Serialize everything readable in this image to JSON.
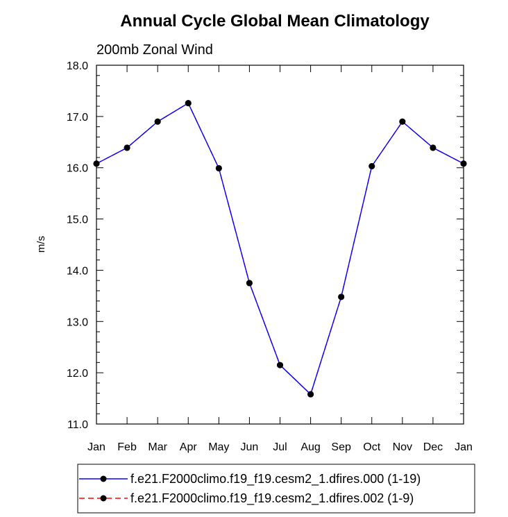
{
  "chart_data": {
    "type": "line",
    "title": "Annual Cycle Global Mean Climatology",
    "subtitle": "200mb Zonal Wind",
    "xlabel": "",
    "ylabel": "m/s",
    "categories": [
      "Jan",
      "Feb",
      "Mar",
      "Apr",
      "May",
      "Jun",
      "Jul",
      "Aug",
      "Sep",
      "Oct",
      "Nov",
      "Dec",
      "Jan"
    ],
    "ylim": [
      11.0,
      18.0
    ],
    "yticks": [
      "11.0",
      "12.0",
      "13.0",
      "14.0",
      "15.0",
      "16.0",
      "17.0",
      "18.0"
    ],
    "grid": false,
    "legend_position": "bottom",
    "series": [
      {
        "name": "f.e21.F2000climo.f19_f19.cesm2_1.dfires.000 (1-19)",
        "color": "#0000ff",
        "style": "solid",
        "marker_color": "#000000",
        "values": [
          16.08,
          16.39,
          16.9,
          17.26,
          15.99,
          13.75,
          12.15,
          11.58,
          13.48,
          16.03,
          16.9,
          16.39,
          16.08
        ]
      },
      {
        "name": "f.e21.F2000climo.f19_f19.cesm2_1.dfires.002 (1-9)",
        "color": "#ff0000",
        "style": "dashed",
        "marker_color": "#000000",
        "values": [
          16.08,
          16.39,
          16.9,
          17.26,
          15.99,
          13.75,
          12.15,
          11.58,
          13.48,
          16.03,
          16.9,
          16.39,
          16.08
        ]
      }
    ]
  }
}
